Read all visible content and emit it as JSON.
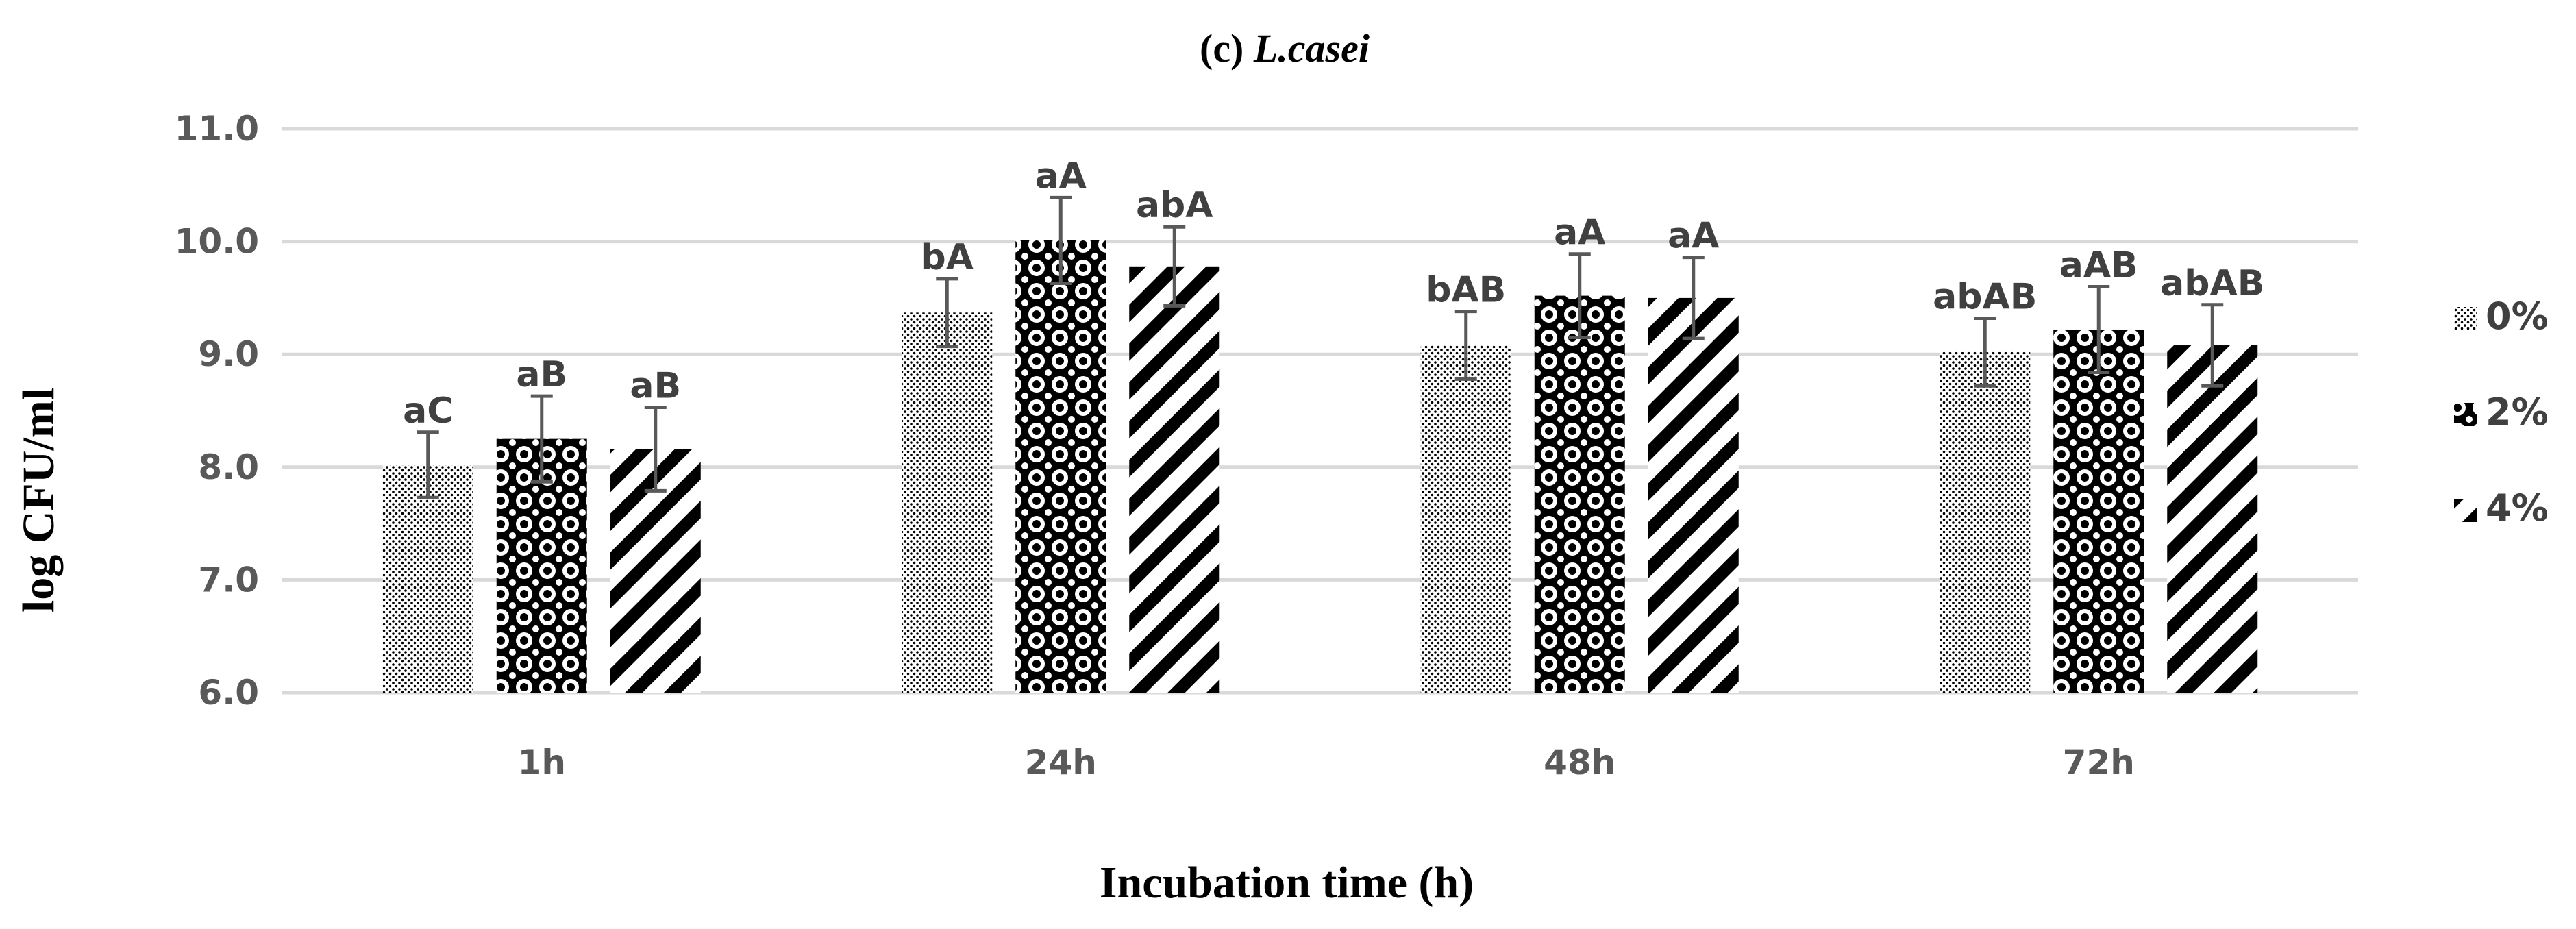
{
  "chart_data": {
    "type": "bar",
    "title_prefix": "(c) ",
    "title_species": "L.casei",
    "xlabel": "Incubation time (h)",
    "ylabel": "log CFU/ml",
    "categories": [
      "1h",
      "24h",
      "48h",
      "72h"
    ],
    "ylim": [
      6.0,
      11.0
    ],
    "yticks": [
      "6.0",
      "7.0",
      "8.0",
      "9.0",
      "10.0",
      "11.0"
    ],
    "grid": "horizontal",
    "legend_position": "right",
    "series": [
      {
        "name": "0%",
        "pattern": "dots",
        "values": [
          8.02,
          9.37,
          9.08,
          9.02
        ],
        "errors": [
          0.29,
          0.3,
          0.3,
          0.3
        ],
        "labels": [
          "aC",
          "bA",
          "bAB",
          "abAB"
        ]
      },
      {
        "name": "2%",
        "pattern": "circles",
        "values": [
          8.25,
          10.01,
          9.52,
          9.22
        ],
        "errors": [
          0.38,
          0.38,
          0.37,
          0.38
        ],
        "labels": [
          "aB",
          "aA",
          "aA",
          "aAB"
        ]
      },
      {
        "name": "4%",
        "pattern": "diagonal",
        "values": [
          8.16,
          9.78,
          9.5,
          9.08
        ],
        "errors": [
          0.37,
          0.35,
          0.36,
          0.36
        ],
        "labels": [
          "aB",
          "abA",
          "aA",
          "abAB"
        ]
      }
    ]
  }
}
